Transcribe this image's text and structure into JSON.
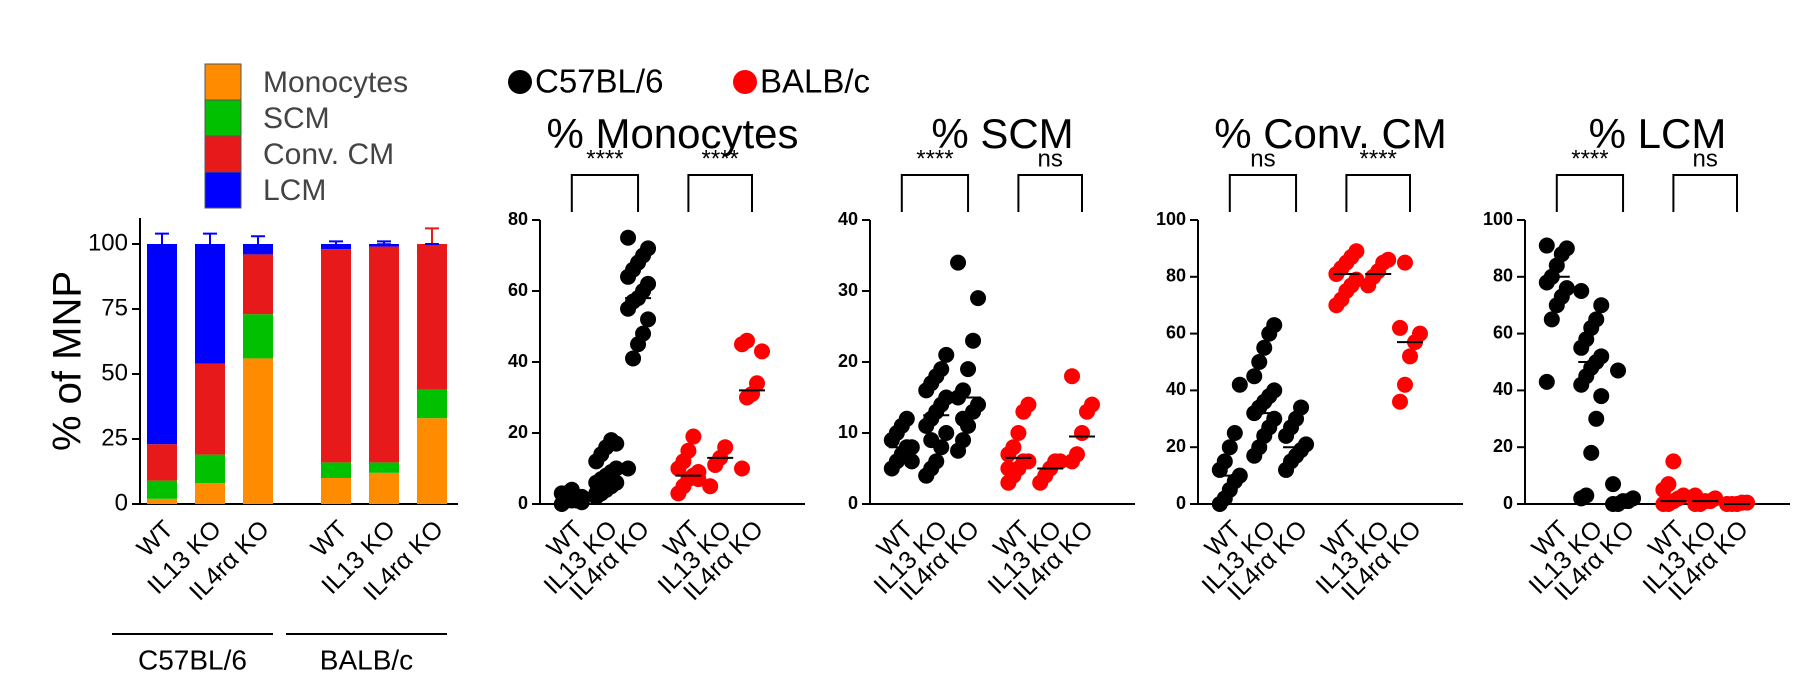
{
  "legend": [
    {
      "name": "C57BL/6",
      "color": "#000000"
    },
    {
      "name": "BALB/c",
      "color": "#ff0000"
    }
  ],
  "chart_data": [
    {
      "type": "stacked_bar",
      "ylabel": "% of MNP",
      "categories": [
        "WT",
        "IL13 KO",
        "IL4rα KO",
        "WT",
        "IL13 KO",
        "IL4rα KO"
      ],
      "group_labels": [
        "C57BL/6",
        "BALB/c"
      ],
      "ylim": [
        0,
        110
      ],
      "yticks": [
        0,
        25,
        50,
        75,
        100
      ],
      "series": [
        {
          "name": "Monocytes",
          "color": "#ff8c00",
          "values": [
            2,
            8,
            56,
            10,
            12,
            33
          ],
          "errors": [
            1,
            1,
            4,
            1,
            1,
            4
          ]
        },
        {
          "name": "SCM",
          "color": "#00c000",
          "values": [
            7,
            11,
            17,
            6,
            4,
            11
          ],
          "errors": [
            1,
            2,
            2,
            1,
            1,
            2
          ]
        },
        {
          "name": "Conv. CM",
          "color": "#e8191a",
          "values": [
            14,
            35,
            23,
            82,
            83,
            56
          ],
          "errors": [
            3,
            3,
            2,
            1,
            1,
            6
          ]
        },
        {
          "name": "LCM",
          "color": "#0000ff",
          "values": [
            77,
            46,
            4,
            2,
            1,
            0
          ],
          "errors": [
            4,
            4,
            3,
            1,
            1,
            0
          ]
        }
      ]
    },
    {
      "type": "strip",
      "title": "% Monocytes",
      "categories": [
        "WT",
        "IL13 KO",
        "IL4rα KO"
      ],
      "ylim": [
        0,
        80
      ],
      "yticks": [
        0,
        20,
        40,
        60,
        80
      ],
      "groups": [
        {
          "values": [
            [
              0,
              1,
              1,
              2,
              2,
              3,
              3,
              4,
              1,
              0.5
            ],
            [
              2,
              3,
              4,
              5,
              6,
              6,
              7,
              8,
              9,
              10,
              12,
              14,
              16,
              18,
              17,
              3,
              5
            ],
            [
              10,
              41,
              45,
              48,
              52,
              55,
              57,
              58,
              60,
              62,
              64,
              66,
              68,
              70,
              72,
              75
            ]
          ],
          "medians": [
            1.5,
            6,
            58
          ],
          "annotation": "****"
        },
        {
          "values": [
            [
              3,
              5,
              7,
              8,
              9,
              10,
              12,
              15,
              19,
              7
            ],
            [
              5,
              11,
              13,
              16
            ],
            [
              10,
              30,
              31,
              34,
              43,
              45,
              46
            ]
          ],
          "medians": [
            8,
            13,
            32
          ],
          "annotation": "****"
        }
      ]
    },
    {
      "type": "strip",
      "title": "% SCM",
      "categories": [
        "WT",
        "IL13 KO",
        "IL4rα KO"
      ],
      "ylim": [
        0,
        40
      ],
      "yticks": [
        0,
        10,
        20,
        30,
        40
      ],
      "groups": [
        {
          "values": [
            [
              5,
              6,
              7,
              8,
              8,
              9,
              10,
              11,
              12,
              6
            ],
            [
              4,
              5,
              6,
              8,
              10,
              11,
              12,
              13,
              14,
              15,
              16,
              17,
              18,
              19,
              21,
              4,
              9
            ],
            [
              7.5,
              9,
              11,
              13,
              14,
              15,
              16,
              19,
              23,
              29,
              34,
              12
            ]
          ],
          "medians": [
            8,
            12.5,
            15
          ],
          "annotation": "****"
        },
        {
          "values": [
            [
              3,
              4,
              5,
              6,
              6,
              7,
              8,
              10,
              13,
              14,
              5
            ],
            [
              3,
              4,
              5,
              6,
              6
            ],
            [
              6,
              7,
              10,
              13,
              14,
              18
            ]
          ],
          "medians": [
            6.5,
            5,
            9.5
          ],
          "annotation": "ns"
        }
      ]
    },
    {
      "type": "strip",
      "title": "% Conv. CM",
      "categories": [
        "WT",
        "IL13 KO",
        "IL4rα KO"
      ],
      "ylim": [
        0,
        100
      ],
      "yticks": [
        0,
        20,
        40,
        60,
        80,
        100
      ],
      "groups": [
        {
          "values": [
            [
              0,
              2,
              5,
              8,
              10,
              12,
              15,
              20,
              25,
              42
            ],
            [
              17,
              20,
              24,
              27,
              30,
              32,
              34,
              36,
              38,
              40,
              45,
              50,
              55,
              60,
              63
            ],
            [
              12,
              15,
              17,
              19,
              21,
              24,
              27,
              30,
              34
            ]
          ],
          "medians": [
            10,
            32,
            20
          ],
          "annotation": "ns"
        },
        {
          "values": [
            [
              70,
              72,
              75,
              77,
              79,
              81,
              83,
              85,
              87,
              89
            ],
            [
              77,
              80,
              82,
              85,
              86
            ],
            [
              36,
              42,
              52,
              57,
              60,
              62,
              85
            ]
          ],
          "medians": [
            81,
            81,
            57
          ],
          "annotation": "****"
        }
      ]
    },
    {
      "type": "strip",
      "title": "% LCM",
      "categories": [
        "WT",
        "IL13 KO",
        "IL4rα KO"
      ],
      "ylim": [
        0,
        100
      ],
      "yticks": [
        0,
        20,
        40,
        60,
        80,
        100
      ],
      "groups": [
        {
          "values": [
            [
              43,
              65,
              70,
              73,
              76,
              78,
              80,
              84,
              88,
              90,
              91
            ],
            [
              2,
              3,
              18,
              30,
              38,
              42,
              45,
              48,
              50,
              52,
              55,
              58,
              62,
              65,
              70,
              75
            ],
            [
              0,
              0,
              1,
              1,
              2,
              7,
              47
            ]
          ],
          "medians": [
            80,
            50,
            1
          ],
          "annotation": "****"
        },
        {
          "values": [
            [
              0,
              0,
              1,
              2,
              3,
              5,
              7,
              15
            ],
            [
              0,
              0,
              1,
              1,
              2,
              3
            ],
            [
              0,
              0,
              0,
              0.5,
              0.5
            ]
          ],
          "medians": [
            1,
            1,
            0
          ],
          "annotation": "ns"
        }
      ]
    }
  ]
}
